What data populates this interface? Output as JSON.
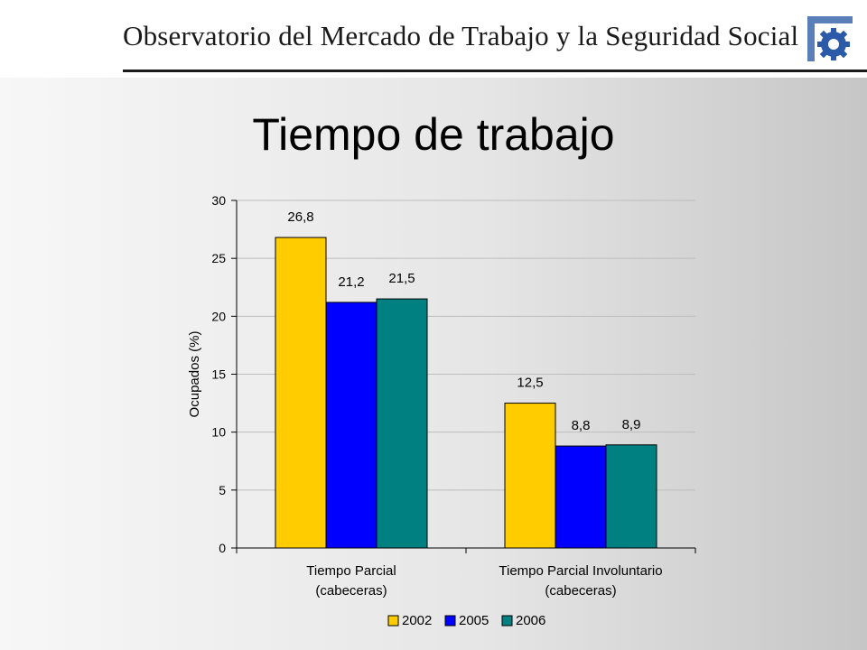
{
  "header": {
    "title": "Observatorio del Mercado de Trabajo y la Seguridad Social",
    "logo_icon": "gear-logo-icon",
    "logo_color": "#2b5aa8"
  },
  "slide": {
    "title": "Tiempo de trabajo"
  },
  "chart_data": {
    "type": "bar",
    "categories": [
      [
        "Tiempo Parcial",
        "(cabeceras)"
      ],
      [
        "Tiempo Parcial Involuntario",
        "(cabeceras)"
      ]
    ],
    "series": [
      {
        "name": "2002",
        "color": "#ffcc00",
        "values": [
          26.8,
          12.5
        ],
        "labels": [
          "26,8",
          "12,5"
        ]
      },
      {
        "name": "2005",
        "color": "#0000ff",
        "values": [
          21.2,
          8.8
        ],
        "labels": [
          "21,2",
          "8,8"
        ]
      },
      {
        "name": "2006",
        "color": "#008080",
        "values": [
          21.5,
          8.9
        ],
        "labels": [
          "21,5",
          "8,9"
        ]
      }
    ],
    "ylabel": "Ocupados (%)",
    "ylim": [
      0,
      30
    ],
    "yticks": [
      0,
      5,
      10,
      15,
      20,
      25,
      30
    ],
    "grid": true,
    "legend": "bottom"
  }
}
